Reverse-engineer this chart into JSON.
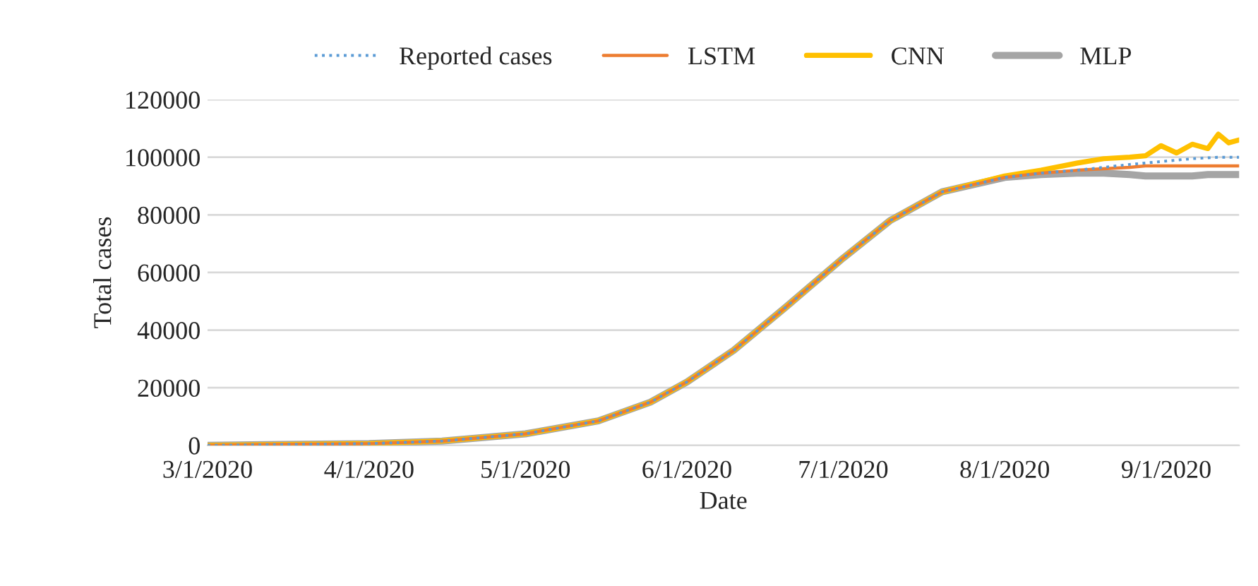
{
  "chart_data": {
    "type": "line",
    "xlabel": "Date",
    "ylabel": "Total cases",
    "x": [
      "2020-03-01",
      "2020-03-15",
      "2020-04-01",
      "2020-04-15",
      "2020-05-01",
      "2020-05-15",
      "2020-05-25",
      "2020-06-01",
      "2020-06-10",
      "2020-06-20",
      "2020-07-01",
      "2020-07-10",
      "2020-07-20",
      "2020-08-01",
      "2020-08-08",
      "2020-08-15",
      "2020-08-20",
      "2020-08-25",
      "2020-08-28",
      "2020-08-31",
      "2020-09-03",
      "2020-09-06",
      "2020-09-09",
      "2020-09-11",
      "2020-09-13",
      "2020-09-15"
    ],
    "series": [
      {
        "name": "Reported cases",
        "color": "#5b9bd5",
        "line_style": "dotted",
        "values": [
          0,
          300,
          600,
          1500,
          4000,
          8500,
          15000,
          22000,
          33000,
          48000,
          65000,
          78000,
          88000,
          93000,
          94500,
          95500,
          96500,
          97500,
          98000,
          98500,
          99000,
          99500,
          99800,
          100000,
          100000,
          100000
        ]
      },
      {
        "name": "LSTM",
        "color": "#ed7d31",
        "line_style": "solid",
        "values": [
          0,
          300,
          600,
          1500,
          4000,
          8500,
          15000,
          22000,
          33000,
          48000,
          65000,
          78000,
          88000,
          93000,
          94500,
          95500,
          96000,
          96500,
          97000,
          97000,
          97000,
          97000,
          97000,
          97000,
          97000,
          97000
        ]
      },
      {
        "name": "CNN",
        "color": "#ffc000",
        "line_style": "solid",
        "values": [
          0,
          300,
          600,
          1500,
          4000,
          8500,
          15000,
          22000,
          33000,
          48000,
          65000,
          78000,
          88000,
          93500,
          95500,
          98000,
          99500,
          100000,
          100500,
          104000,
          101500,
          104500,
          103000,
          108000,
          105000,
          106000
        ]
      },
      {
        "name": "MLP",
        "color": "#a5a5a5",
        "line_style": "solid",
        "values": [
          0,
          300,
          600,
          1500,
          4000,
          8500,
          15000,
          22000,
          33000,
          48000,
          65000,
          78000,
          88000,
          93000,
          94000,
          94500,
          94500,
          94000,
          93500,
          93500,
          93500,
          93500,
          94000,
          94000,
          94000,
          94000
        ]
      }
    ],
    "xlim": [
      "2020-03-01",
      "2020-09-15"
    ],
    "xticks": [
      {
        "value": "2020-03-01",
        "label": "3/1/2020"
      },
      {
        "value": "2020-04-01",
        "label": "4/1/2020"
      },
      {
        "value": "2020-05-01",
        "label": "5/1/2020"
      },
      {
        "value": "2020-06-01",
        "label": "6/1/2020"
      },
      {
        "value": "2020-07-01",
        "label": "7/1/2020"
      },
      {
        "value": "2020-08-01",
        "label": "8/1/2020"
      },
      {
        "value": "2020-09-01",
        "label": "9/1/2020"
      }
    ],
    "ylim": [
      0,
      120000
    ],
    "yticks": [
      0,
      20000,
      40000,
      60000,
      80000,
      100000,
      120000
    ],
    "grid": "y",
    "legend": "top"
  }
}
